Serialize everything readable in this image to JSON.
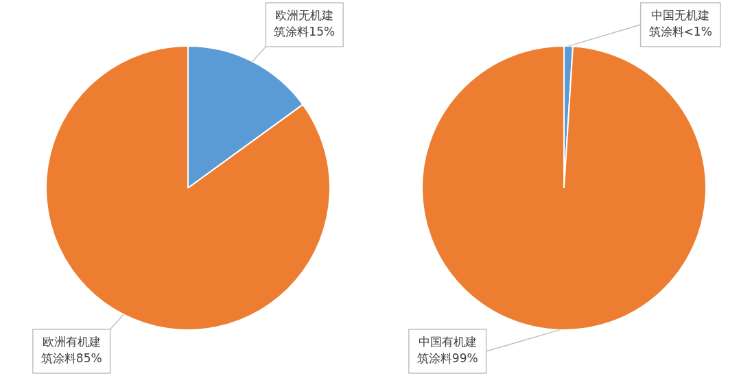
{
  "chart_data": [
    {
      "type": "pie",
      "categories": [
        "欧洲无机建筑涂料",
        "欧洲有机建筑涂料"
      ],
      "values": [
        15,
        85
      ],
      "colors": [
        "#5b9bd5",
        "#ed7d31"
      ],
      "value_labels": [
        "15%",
        "85%"
      ]
    },
    {
      "type": "pie",
      "categories": [
        "中国无机建筑涂料",
        "中国有机建筑涂料"
      ],
      "values": [
        1,
        99
      ],
      "colors": [
        "#5b9bd5",
        "#ed7d31"
      ],
      "value_labels": [
        "<1%",
        "99%"
      ]
    }
  ]
}
